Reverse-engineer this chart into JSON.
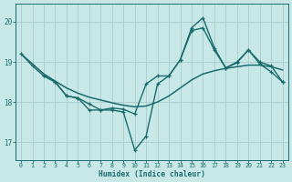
{
  "xlabel": "Humidex (Indice chaleur)",
  "background_color": "#c8e8e8",
  "grid_color": "#a8cccc",
  "line_color": "#1a6b6b",
  "xlim_min": -0.5,
  "xlim_max": 23.5,
  "ylim_min": 16.55,
  "ylim_max": 20.45,
  "xticks": [
    0,
    1,
    2,
    3,
    4,
    5,
    6,
    7,
    8,
    9,
    10,
    11,
    12,
    13,
    14,
    15,
    16,
    17,
    18,
    19,
    20,
    21,
    22,
    23
  ],
  "yticks": [
    17,
    18,
    19,
    20
  ],
  "line_trend_x": [
    0,
    1,
    2,
    3,
    4,
    5,
    6,
    7,
    8,
    9,
    10,
    11,
    12,
    13,
    14,
    15,
    16,
    17,
    18,
    19,
    20,
    21,
    22,
    23
  ],
  "line_trend_y": [
    19.2,
    18.95,
    18.7,
    18.52,
    18.35,
    18.22,
    18.12,
    18.05,
    17.98,
    17.92,
    17.88,
    17.9,
    18.0,
    18.15,
    18.35,
    18.55,
    18.7,
    18.78,
    18.84,
    18.88,
    18.92,
    18.92,
    18.88,
    18.8
  ],
  "line_main_x": [
    0,
    1,
    2,
    3,
    4,
    5,
    6,
    7,
    8,
    9,
    10,
    11,
    12,
    13,
    14,
    15,
    16,
    17,
    18,
    19,
    20,
    21,
    22,
    23
  ],
  "line_main_y": [
    19.2,
    18.9,
    18.65,
    18.5,
    18.15,
    18.1,
    17.8,
    17.8,
    17.8,
    17.75,
    16.8,
    17.15,
    18.45,
    18.65,
    19.05,
    19.85,
    20.1,
    19.35,
    18.85,
    19.0,
    19.3,
    19.0,
    18.9,
    18.5
  ],
  "line_alt_x": [
    2,
    3,
    4,
    5,
    6,
    7,
    8,
    9,
    10,
    11,
    12,
    13,
    14,
    15,
    16,
    17,
    18,
    19,
    20,
    21,
    22,
    23
  ],
  "line_alt_y": [
    18.65,
    18.5,
    18.15,
    18.1,
    17.95,
    17.8,
    17.85,
    17.82,
    17.7,
    18.45,
    18.65,
    18.65,
    19.05,
    19.78,
    19.85,
    19.3,
    18.85,
    18.98,
    19.3,
    18.95,
    18.75,
    18.5
  ]
}
